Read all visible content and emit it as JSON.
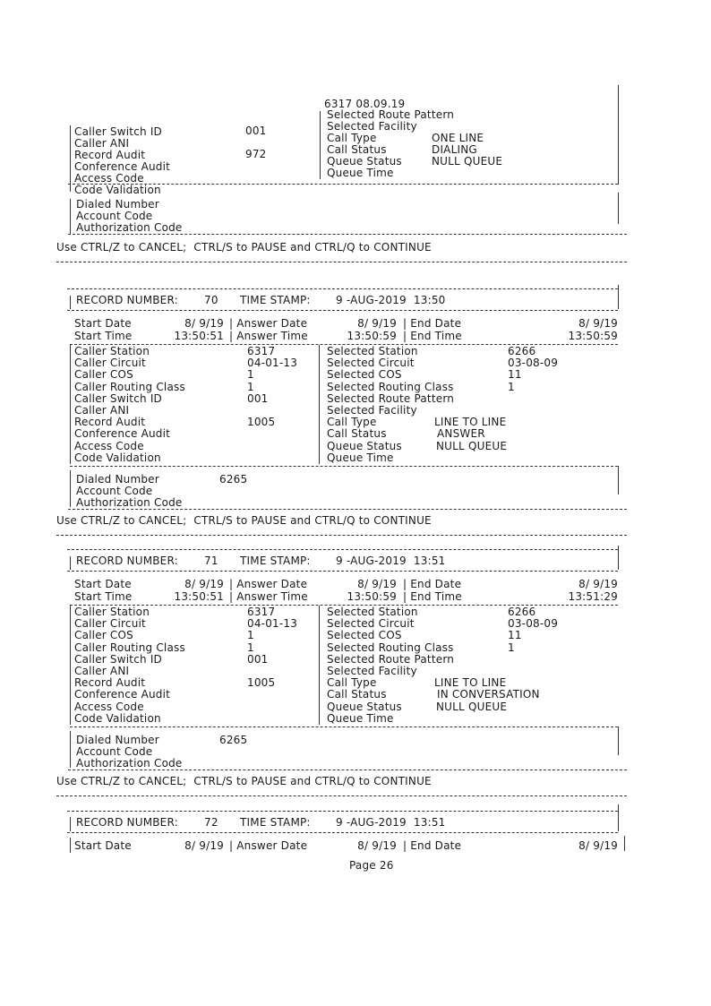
{
  "partial_record": {
    "header": "6317 08.09.19",
    "left": [
      {
        "label": "Caller Switch ID",
        "value": "001"
      },
      {
        "label": "Caller ANI",
        "value": ""
      },
      {
        "label": "Record Audit",
        "value": "972"
      },
      {
        "label": "Conference Audit",
        "value": ""
      },
      {
        "label": "Access Code",
        "value": ""
      },
      {
        "label": "Code Validation",
        "value": ""
      }
    ],
    "right": [
      {
        "label": "Selected Route Pattern",
        "value": ""
      },
      {
        "label": "Selected Facility",
        "value": ""
      },
      {
        "label": "Call Type",
        "value": "ONE LINE"
      },
      {
        "label": "Call Status",
        "value": "DIALING"
      },
      {
        "label": "Queue Status",
        "value": "NULL QUEUE"
      },
      {
        "label": "Queue Time",
        "value": ""
      }
    ],
    "bottom": [
      {
        "label": "Dialed Number",
        "value": ""
      },
      {
        "label": "Account Code",
        "value": ""
      },
      {
        "label": "Authorization Code",
        "value": ""
      }
    ]
  },
  "labels": {
    "record_number": "RECORD NUMBER:",
    "time_stamp": "TIME STAMP:",
    "start_date": "Start Date",
    "start_time": "Start Time",
    "answer_date": "| Answer Date",
    "answer_time": "| Answer Time",
    "end_date": "| End Date",
    "end_time": "| End Time",
    "left": [
      "Caller Station",
      "Caller Circuit",
      "Caller COS",
      "Caller Routing Class",
      "Caller Switch ID",
      "Caller ANI",
      "Record Audit",
      "Conference Audit",
      "Access Code",
      "Code Validation"
    ],
    "right": [
      "Selected Station",
      "Selected Circuit",
      "Selected COS",
      "Selected Routing Class",
      "Selected Route Pattern",
      "Selected Facility",
      "Call Type",
      "Call Status",
      "Queue Status",
      "Queue Time"
    ],
    "bottom": [
      "Dialed Number",
      "Account Code",
      "Authorization Code"
    ]
  },
  "control_hint": "Use CTRL/Z to CANCEL;  CTRL/S to PAUSE and CTRL/Q to CONTINUE",
  "records": [
    {
      "number": "70",
      "time_stamp": "9 -AUG-2019  13:50",
      "start_date": "8/ 9/19",
      "start_time": "13:50:51",
      "answer_date": "8/ 9/19",
      "answer_time": "13:50:59",
      "end_date": "8/ 9/19",
      "end_time": "13:50:59",
      "left_values": [
        "6317",
        "04-01-13",
        "1",
        "1",
        "001",
        "",
        "1005",
        "",
        "",
        ""
      ],
      "selected_values": [
        "6266",
        "03-08-09",
        "11",
        "1"
      ],
      "call_type": "LINE TO LINE",
      "call_status": "ANSWER",
      "queue_status": "NULL QUEUE",
      "dialed_number": "6265"
    },
    {
      "number": "71",
      "time_stamp": "9 -AUG-2019  13:51",
      "start_date": "8/ 9/19",
      "start_time": "13:50:51",
      "answer_date": "8/ 9/19",
      "answer_time": "13:50:59",
      "end_date": "8/ 9/19",
      "end_time": "13:51:29",
      "left_values": [
        "6317",
        "04-01-13",
        "1",
        "1",
        "001",
        "",
        "1005",
        "",
        "",
        ""
      ],
      "selected_values": [
        "6266",
        "03-08-09",
        "11",
        "1"
      ],
      "call_type": "LINE TO LINE",
      "call_status": "IN CONVERSATION",
      "queue_status": "NULL QUEUE",
      "dialed_number": "6265"
    }
  ],
  "partial_last_record": {
    "number": "72",
    "time_stamp": "9 -AUG-2019  13:51",
    "start_date": "8/ 9/19",
    "answer_date": "8/ 9/19",
    "end_date": "8/ 9/19"
  },
  "footer": {
    "page": "Page 26"
  }
}
